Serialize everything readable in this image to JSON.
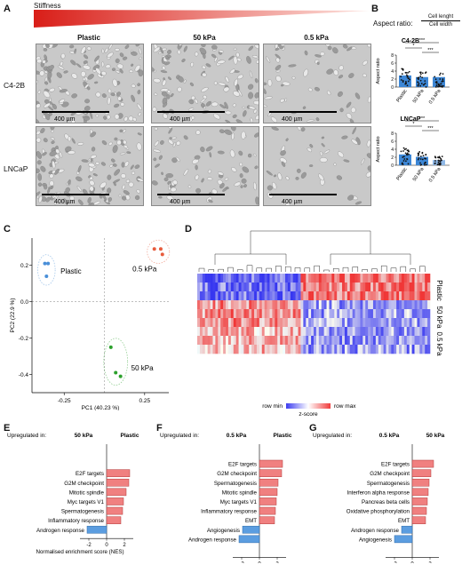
{
  "panel_letters": {
    "A": "A",
    "B": "B",
    "C": "C",
    "D": "D",
    "E": "E",
    "F": "F",
    "G": "G"
  },
  "panelA": {
    "stiffness_label": "Stiffness",
    "columns": [
      "Plastic",
      "50 kPa",
      "0.5 kPa"
    ],
    "rows": [
      "C4-2B",
      "LNCaP"
    ],
    "scalebar": "400 µm"
  },
  "panelB": {
    "formula_prefix": "Aspect ratio:",
    "numerator": "Cell lenght",
    "denominator": "Cell width",
    "ylabel": "Aspect ratio",
    "charts": [
      {
        "title": "C4-2B",
        "categories": [
          "Plastic",
          "50 kPa",
          "0.5 kPa"
        ],
        "values": [
          2.9,
          2.5,
          2.5
        ],
        "ylim": [
          0,
          8
        ],
        "yticks": [
          "0",
          "2",
          "4",
          "6",
          "8"
        ],
        "sig": [
          {
            "pair": "Plastic-0.5 kPa",
            "label": "***"
          },
          {
            "pair": "Plastic-50 kPa",
            "label": "*"
          },
          {
            "pair": "50 kPa-0.5 kPa",
            "label": "***"
          }
        ]
      },
      {
        "title": "LNCaP",
        "categories": [
          "Plastic",
          "50 kPa",
          "0.5 kPa"
        ],
        "values": [
          2.7,
          2.1,
          1.3
        ],
        "ylim": [
          0,
          8
        ],
        "yticks": [
          "0",
          "2",
          "4",
          "6",
          "8"
        ],
        "sig": [
          {
            "pair": "Plastic-0.5 kPa",
            "label": "***"
          },
          {
            "pair": "Plastic-50 kPa",
            "label": "*"
          },
          {
            "pair": "50 kPa-0.5 kPa",
            "label": "***"
          }
        ]
      }
    ]
  },
  "panelC": {
    "xlabel": "PC1 (40.23 %)",
    "ylabel": "PC2 (22.9 %)",
    "xticks": [
      "-0.25",
      "0.25"
    ],
    "yticks": [
      "0.2",
      "0.0",
      "-0.2",
      "-0.4"
    ],
    "groups": [
      {
        "name": "Plastic",
        "color": "#4a8fd8",
        "points": [
          [
            -0.37,
            0.21
          ],
          [
            -0.35,
            0.21
          ],
          [
            -0.36,
            0.14
          ]
        ]
      },
      {
        "name": "0.5 kPa",
        "color": "#e85b3c",
        "points": [
          [
            0.31,
            0.29
          ],
          [
            0.35,
            0.29
          ],
          [
            0.36,
            0.26
          ]
        ]
      },
      {
        "name": "50 kPa",
        "color": "#2ca02c",
        "points": [
          [
            0.04,
            -0.25
          ],
          [
            0.07,
            -0.39
          ],
          [
            0.1,
            -0.41
          ]
        ]
      }
    ]
  },
  "panelD": {
    "row_labels": [
      "Plastic",
      "50 kPa",
      "0.5 kPa"
    ],
    "legend_min": "row min",
    "legend_max": "row max",
    "legend_title": "z-score"
  },
  "chart_data": [
    {
      "type": "bar",
      "panel": "E",
      "title": "",
      "up_left": "50 kPa",
      "up_right": "Plastic",
      "up_label": "Upregulated in:",
      "categories": [
        "E2F targets",
        "G2M checkpoint",
        "Mitotic spindle",
        "Myc targets V1",
        "Spermatogenesis",
        "Inflammatory response",
        "Androgen response"
      ],
      "values": [
        2.6,
        2.5,
        2.2,
        1.9,
        1.8,
        1.6,
        -2.2
      ],
      "xlim": [
        -3,
        3
      ],
      "xticks": [
        "-2",
        "0",
        "2"
      ],
      "xlabel": "Normalised enrichment score (NES)"
    },
    {
      "type": "bar",
      "panel": "F",
      "title": "",
      "up_left": "0.5 kPa",
      "up_right": "Plastic",
      "up_label": "Upregulated in:",
      "categories": [
        "E2F targets",
        "G2M checkpoint",
        "Spermatogenesis",
        "Mitotic spindle",
        "Myc targets V1",
        "Inflammatory response",
        "EMT",
        "Angiogenesis",
        "Androgen response"
      ],
      "values": [
        2.6,
        2.5,
        2.1,
        2.0,
        1.9,
        1.8,
        1.7,
        -1.9,
        -2.3
      ],
      "xlim": [
        -3,
        3
      ],
      "xticks": [
        "-2",
        "0",
        "2"
      ],
      "xlabel": "Normalised enrichment score (NES)"
    },
    {
      "type": "bar",
      "panel": "G",
      "title": "",
      "up_left": "0.5 kPa",
      "up_right": "50 kPa",
      "up_label": "Upregulated in:",
      "categories": [
        "E2F targets",
        "G2M checkpoint",
        "Spermatogenesis",
        "Interferon alpha response",
        "Pancreas beta cells",
        "Oxidative phosphorylation",
        "EMT",
        "Androgen response",
        "Angiogenesis"
      ],
      "values": [
        2.4,
        2.1,
        1.9,
        1.8,
        1.7,
        1.6,
        1.5,
        -1.2,
        -2.0
      ],
      "xlim": [
        -3,
        3
      ],
      "xticks": [
        "-2",
        "0",
        "2"
      ],
      "xlabel": "Normalised enrichment score (NES)"
    }
  ]
}
